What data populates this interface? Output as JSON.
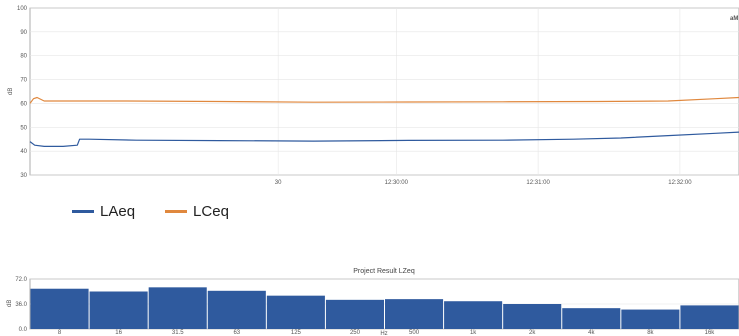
{
  "chart_data": [
    {
      "type": "line",
      "ylabel": "dB",
      "ylim": [
        30,
        100
      ],
      "yticks": [
        30,
        40,
        50,
        60,
        70,
        80,
        90,
        100
      ],
      "xlim_seconds": [
        0,
        300
      ],
      "x_tick_labels": [
        {
          "t": 105,
          "label": "30"
        },
        {
          "t": 155,
          "label": "12:30:00"
        },
        {
          "t": 215,
          "label": "12:31:00"
        },
        {
          "t": 275,
          "label": "12:32:00"
        }
      ],
      "corner_label": "aM",
      "grid": true,
      "legend_position": "bottom-left",
      "series": [
        {
          "name": "LAeq",
          "color": "#2f5a9e",
          "points": [
            [
              0,
              44
            ],
            [
              2,
              42.5
            ],
            [
              6,
              42
            ],
            [
              14,
              42
            ],
            [
              20,
              42.5
            ],
            [
              21,
              45
            ],
            [
              25,
              45
            ],
            [
              45,
              44.6
            ],
            [
              80,
              44.4
            ],
            [
              120,
              44.2
            ],
            [
              160,
              44.5
            ],
            [
              200,
              44.6
            ],
            [
              230,
              45
            ],
            [
              250,
              45.5
            ],
            [
              270,
              46.5
            ],
            [
              290,
              47.5
            ],
            [
              300,
              48
            ]
          ]
        },
        {
          "name": "LCeq",
          "color": "#e0883e",
          "points": [
            [
              0,
              60
            ],
            [
              1.5,
              62
            ],
            [
              3,
              62.5
            ],
            [
              6,
              61
            ],
            [
              40,
              61
            ],
            [
              80,
              60.8
            ],
            [
              120,
              60.5
            ],
            [
              160,
              60.6
            ],
            [
              200,
              60.7
            ],
            [
              240,
              60.8
            ],
            [
              270,
              61
            ],
            [
              290,
              62
            ],
            [
              300,
              62.5
            ]
          ]
        }
      ]
    },
    {
      "type": "bar",
      "title": "Project Result LZeq",
      "ylabel": "dB",
      "xlabel": "Hz",
      "ylim": [
        0,
        72
      ],
      "yticks": [
        "0.0",
        "36.0",
        "72.0"
      ],
      "categories": [
        "8",
        "16",
        "31.5",
        "63",
        "125",
        "250",
        "500",
        "1k",
        "2k",
        "4k",
        "8k",
        "16k"
      ],
      "values": [
        58,
        54,
        60,
        55,
        48,
        42,
        43,
        40,
        36,
        30,
        28,
        34
      ],
      "color": "#2f5a9e",
      "grid": true
    }
  ]
}
